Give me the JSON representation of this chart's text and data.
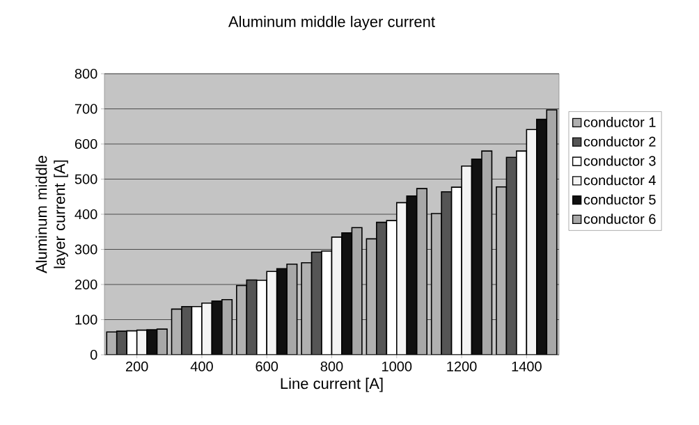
{
  "chart_data": {
    "type": "bar",
    "title": "Aluminum middle layer current",
    "xlabel": "Line current [A]",
    "ylabel": "Aluminum middle layer current [A]",
    "categories": [
      "200",
      "400",
      "600",
      "800",
      "1000",
      "1200",
      "1400"
    ],
    "series": [
      {
        "name": "conductor 1",
        "color": "#b0b0b0",
        "values": [
          65,
          130,
          197,
          262,
          330,
          402,
          478
        ]
      },
      {
        "name": "conductor 2",
        "color": "#555555",
        "values": [
          67,
          137,
          213,
          292,
          377,
          464,
          562
        ]
      },
      {
        "name": "conductor 3",
        "color": "#ffffff",
        "values": [
          68,
          137,
          212,
          295,
          382,
          477,
          580
        ]
      },
      {
        "name": "conductor 4",
        "color": "#f4f4f4",
        "values": [
          70,
          147,
          237,
          335,
          433,
          537,
          641
        ]
      },
      {
        "name": "conductor 5",
        "color": "#111111",
        "values": [
          71,
          153,
          245,
          347,
          452,
          557,
          670
        ]
      },
      {
        "name": "conductor 6",
        "color": "#a8a8a8",
        "values": [
          73,
          157,
          258,
          362,
          473,
          580,
          697
        ]
      }
    ],
    "ylim": [
      0,
      800
    ],
    "yticks": [
      0,
      100,
      200,
      300,
      400,
      500,
      600,
      700,
      800
    ],
    "grid": "y",
    "legend": "right"
  }
}
